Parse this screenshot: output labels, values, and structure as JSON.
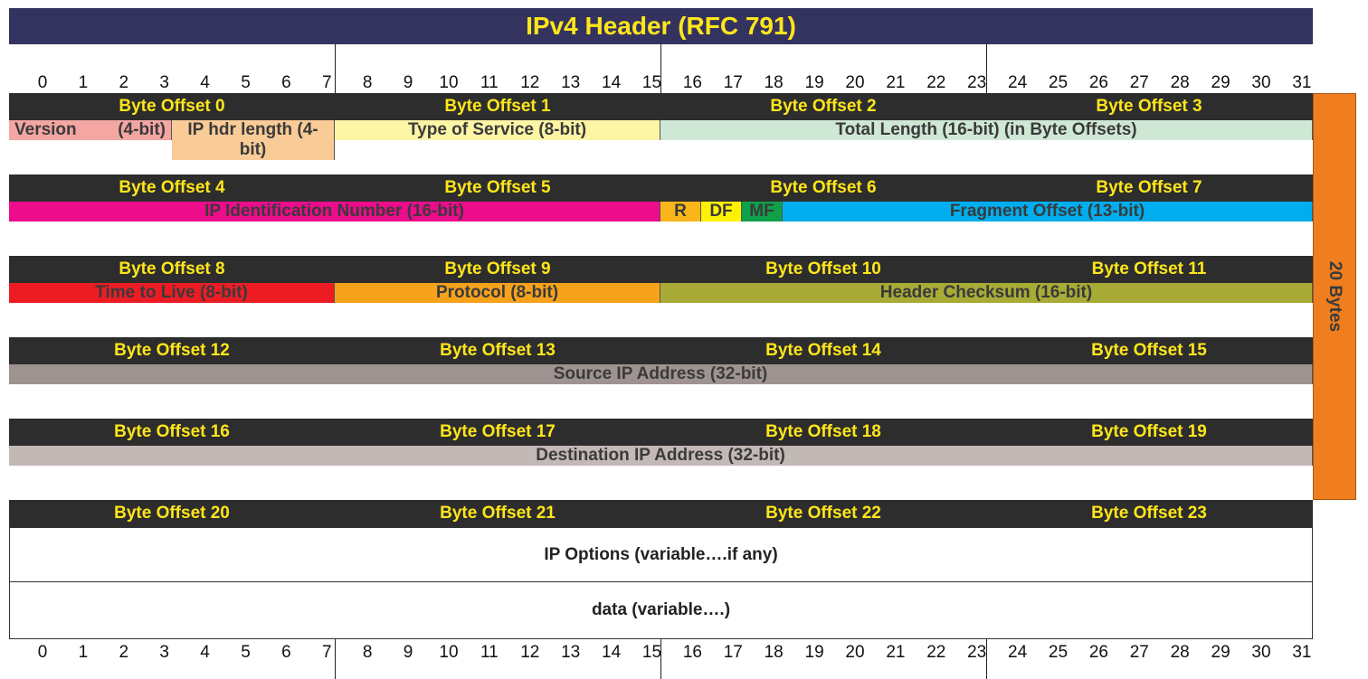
{
  "title": "IPv4 Header (RFC 791)",
  "bits": [
    "0",
    "1",
    "2",
    "3",
    "4",
    "5",
    "6",
    "7",
    "8",
    "9",
    "10",
    "11",
    "12",
    "13",
    "14",
    "15",
    "16",
    "17",
    "18",
    "19",
    "20",
    "21",
    "22",
    "23",
    "24",
    "25",
    "26",
    "27",
    "28",
    "29",
    "30",
    "31"
  ],
  "byte_offsets": [
    [
      "Byte Offset 0",
      "Byte Offset 1",
      "Byte Offset 2",
      "Byte Offset 3"
    ],
    [
      "Byte Offset 4",
      "Byte Offset 5",
      "Byte Offset 6",
      "Byte Offset 7"
    ],
    [
      "Byte Offset 8",
      "Byte Offset 9",
      "Byte Offset 10",
      "Byte Offset 11"
    ],
    [
      "Byte Offset 12",
      "Byte Offset 13",
      "Byte Offset 14",
      "Byte Offset 15"
    ],
    [
      "Byte Offset 16",
      "Byte Offset 17",
      "Byte Offset 18",
      "Byte Offset 19"
    ],
    [
      "Byte Offset 20",
      "Byte Offset 21",
      "Byte Offset 22",
      "Byte Offset 23"
    ]
  ],
  "fields": {
    "version": "Version",
    "version_bits": "(4-bit)",
    "ihl": "IP hdr length (4-bit)",
    "tos": "Type of Service (8-bit)",
    "total_length": "Total Length (16-bit) (in Byte Offsets)",
    "identification": "IP Identification Number (16-bit)",
    "flag_r": "R",
    "flag_df": "DF",
    "flag_mf": "MF",
    "fragment_offset": "Fragment Offset (13-bit)",
    "ttl": "Time to Live (8-bit)",
    "protocol": "Protocol (8-bit)",
    "checksum": "Header Checksum (16-bit)",
    "source": "Source IP Address (32-bit)",
    "destination": "Destination IP Address (32-bit)",
    "options": "IP Options (variable….if any)",
    "data": "data (variable….)"
  },
  "side_label": "20 Bytes",
  "colors": {
    "title_bg": "#34335f",
    "title_text": "#ffe61a",
    "offset_bg": "#2d2d2d",
    "version": "#f4a6a3",
    "ihl": "#f9cb97",
    "tos": "#fdf5a6",
    "total_length": "#cfe8d6",
    "identification": "#ec0c8c",
    "flag_r": "#f9b51a",
    "flag_df": "#fff200",
    "flag_mf": "#0fa04a",
    "fragment_offset": "#00aeef",
    "ttl": "#ed1c24",
    "protocol": "#f7a21b",
    "checksum": "#a8ab35",
    "source": "#9e9390",
    "destination": "#c2b8b5",
    "side_bar": "#f07e1e"
  }
}
